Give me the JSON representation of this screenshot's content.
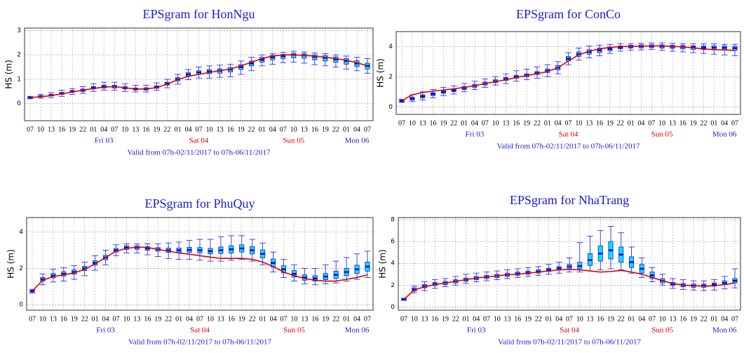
{
  "chart_data": [
    {
      "type": "boxplot",
      "title": "EPSgram for HonNgu",
      "ylabel": "HS (m)",
      "categories": [
        "07",
        "10",
        "13",
        "16",
        "19",
        "22",
        "01",
        "04",
        "07",
        "10",
        "13",
        "16",
        "19",
        "22",
        "01",
        "04",
        "07",
        "10",
        "13",
        "16",
        "19",
        "22",
        "01",
        "04",
        "07",
        "10",
        "13",
        "16",
        "19",
        "22",
        "01",
        "04",
        "07"
      ],
      "day_labels": [
        {
          "text": "Fri 03",
          "color": "#1a1adc"
        },
        {
          "text": "Sat 04",
          "color": "#e00000"
        },
        {
          "text": "Sun 05",
          "color": "#e00000"
        },
        {
          "text": "Mon 06",
          "color": "#1a1adc"
        }
      ],
      "footnote": "Valid from 07h-02/11/2017 to 07h-06/11/2017",
      "ylim": [
        -0.7,
        3.1
      ],
      "yticks": [
        0,
        1,
        2,
        3
      ],
      "grid": true,
      "box_color": "#00e5ff",
      "median_color": "#0000cc",
      "whisker_low": [
        0.2,
        0.22,
        0.25,
        0.3,
        0.38,
        0.42,
        0.5,
        0.55,
        0.55,
        0.5,
        0.48,
        0.48,
        0.55,
        0.65,
        0.8,
        0.98,
        1.05,
        1.05,
        1.08,
        1.1,
        1.2,
        1.35,
        1.55,
        1.62,
        1.68,
        1.7,
        1.66,
        1.6,
        1.55,
        1.5,
        1.42,
        1.35,
        1.25
      ],
      "q1": [
        0.23,
        0.27,
        0.32,
        0.38,
        0.46,
        0.5,
        0.6,
        0.64,
        0.64,
        0.6,
        0.56,
        0.56,
        0.63,
        0.76,
        0.93,
        1.12,
        1.2,
        1.23,
        1.25,
        1.3,
        1.4,
        1.55,
        1.7,
        1.8,
        1.85,
        1.88,
        1.86,
        1.8,
        1.75,
        1.7,
        1.62,
        1.52,
        1.42
      ],
      "median": [
        0.25,
        0.3,
        0.35,
        0.42,
        0.5,
        0.55,
        0.65,
        0.7,
        0.7,
        0.65,
        0.6,
        0.6,
        0.68,
        0.82,
        1.0,
        1.2,
        1.28,
        1.32,
        1.35,
        1.4,
        1.5,
        1.65,
        1.8,
        1.9,
        1.95,
        2.0,
        1.98,
        1.92,
        1.88,
        1.82,
        1.75,
        1.65,
        1.55
      ],
      "q3": [
        0.27,
        0.33,
        0.38,
        0.46,
        0.54,
        0.6,
        0.7,
        0.76,
        0.76,
        0.7,
        0.64,
        0.65,
        0.73,
        0.88,
        1.07,
        1.27,
        1.35,
        1.4,
        1.43,
        1.48,
        1.6,
        1.75,
        1.9,
        1.98,
        2.02,
        2.07,
        2.05,
        2.0,
        1.97,
        1.92,
        1.85,
        1.76,
        1.66
      ],
      "whisker_high": [
        0.3,
        0.38,
        0.45,
        0.55,
        0.62,
        0.7,
        0.82,
        0.88,
        0.88,
        0.82,
        0.75,
        0.76,
        0.85,
        1.0,
        1.2,
        1.4,
        1.5,
        1.55,
        1.58,
        1.62,
        1.75,
        1.9,
        2.0,
        2.05,
        2.1,
        2.15,
        2.12,
        2.08,
        2.05,
        2.0,
        1.95,
        1.9,
        1.85
      ],
      "line": {
        "color": "#e00000",
        "values": [
          0.25,
          0.28,
          0.33,
          0.4,
          0.48,
          0.55,
          0.62,
          0.68,
          0.7,
          0.65,
          0.6,
          0.6,
          0.66,
          0.8,
          0.98,
          1.12,
          1.2,
          1.28,
          1.35,
          1.42,
          1.55,
          1.7,
          1.85,
          1.95,
          2.0,
          2.0,
          1.98,
          1.95,
          1.9,
          1.85,
          1.78,
          1.68,
          1.55
        ]
      }
    },
    {
      "type": "boxplot",
      "title": "EPSgram for ConCo",
      "ylabel": "HS (m)",
      "categories": [
        "07",
        "10",
        "13",
        "16",
        "19",
        "22",
        "01",
        "04",
        "07",
        "10",
        "13",
        "16",
        "19",
        "22",
        "01",
        "04",
        "07",
        "10",
        "13",
        "16",
        "19",
        "22",
        "01",
        "04",
        "07",
        "10",
        "13",
        "16",
        "19",
        "22",
        "01",
        "04",
        "07"
      ],
      "day_labels": [
        {
          "text": "Fri 03",
          "color": "#1a1adc"
        },
        {
          "text": "Sat 04",
          "color": "#e00000"
        },
        {
          "text": "Sun 05",
          "color": "#e00000"
        },
        {
          "text": "Mon 06",
          "color": "#1a1adc"
        }
      ],
      "footnote": "Valid from 07h-02/11/2017 to 07h-06/11/2017",
      "ylim": [
        -0.5,
        5
      ],
      "yticks": [
        0,
        2,
        4
      ],
      "grid": true,
      "box_color": "#00e5ff",
      "median_color": "#0000cc",
      "whisker_low": [
        0.3,
        0.35,
        0.45,
        0.6,
        0.75,
        0.85,
        1.0,
        1.15,
        1.3,
        1.45,
        1.55,
        1.7,
        1.8,
        1.9,
        2.0,
        2.2,
        2.8,
        3.1,
        3.25,
        3.4,
        3.55,
        3.7,
        3.75,
        3.78,
        3.8,
        3.75,
        3.7,
        3.65,
        3.6,
        3.55,
        3.5,
        3.45,
        3.4
      ],
      "q1": [
        0.32,
        0.45,
        0.6,
        0.75,
        0.9,
        1.0,
        1.15,
        1.3,
        1.45,
        1.6,
        1.75,
        1.9,
        2.0,
        2.15,
        2.28,
        2.45,
        3.05,
        3.35,
        3.5,
        3.6,
        3.72,
        3.85,
        3.9,
        3.92,
        3.93,
        3.9,
        3.88,
        3.85,
        3.82,
        3.8,
        3.78,
        3.76,
        3.74
      ],
      "median": [
        0.4,
        0.55,
        0.7,
        0.85,
        1.0,
        1.1,
        1.25,
        1.4,
        1.55,
        1.7,
        1.85,
        2.0,
        2.1,
        2.25,
        2.4,
        2.6,
        3.2,
        3.5,
        3.65,
        3.75,
        3.85,
        3.95,
        4.0,
        4.02,
        4.03,
        4.02,
        4.0,
        3.98,
        3.96,
        3.94,
        3.93,
        3.92,
        3.9
      ],
      "q3": [
        0.48,
        0.65,
        0.8,
        0.95,
        1.1,
        1.2,
        1.35,
        1.5,
        1.65,
        1.8,
        1.95,
        2.1,
        2.2,
        2.35,
        2.52,
        2.75,
        3.35,
        3.65,
        3.8,
        3.9,
        3.98,
        4.05,
        4.1,
        4.12,
        4.13,
        4.12,
        4.1,
        4.08,
        4.06,
        4.05,
        4.05,
        4.04,
        4.02
      ],
      "whisker_high": [
        0.5,
        0.8,
        1.0,
        1.15,
        1.3,
        1.4,
        1.55,
        1.7,
        1.85,
        2.0,
        2.2,
        2.4,
        2.5,
        2.65,
        2.8,
        3.0,
        3.6,
        3.9,
        4.05,
        4.1,
        4.15,
        4.2,
        4.2,
        4.22,
        4.25,
        4.25,
        4.22,
        4.2,
        4.2,
        4.18,
        4.18,
        4.15,
        4.15
      ],
      "line": {
        "color": "#e00000",
        "values": [
          0.4,
          0.8,
          0.95,
          1.05,
          1.12,
          1.2,
          1.3,
          1.4,
          1.55,
          1.68,
          1.8,
          1.95,
          2.08,
          2.2,
          2.35,
          2.6,
          3.05,
          3.45,
          3.7,
          3.85,
          3.95,
          4.0,
          4.02,
          4.03,
          4.05,
          4.05,
          4.02,
          3.98,
          3.92,
          3.85,
          3.8,
          3.78,
          3.75
        ]
      }
    },
    {
      "type": "boxplot",
      "title": "EPSgram for PhuQuy",
      "ylabel": "HS (m)",
      "categories": [
        "07",
        "10",
        "13",
        "16",
        "19",
        "22",
        "01",
        "04",
        "07",
        "10",
        "13",
        "16",
        "19",
        "22",
        "01",
        "04",
        "07",
        "10",
        "13",
        "16",
        "19",
        "22",
        "01",
        "04",
        "07",
        "10",
        "13",
        "16",
        "19",
        "22",
        "01",
        "04",
        "07"
      ],
      "day_labels": [
        {
          "text": "Fri 03",
          "color": "#1a1adc"
        },
        {
          "text": "Sat 04",
          "color": "#e00000"
        },
        {
          "text": "Sun 05",
          "color": "#e00000"
        },
        {
          "text": "Mon 06",
          "color": "#1a1adc"
        }
      ],
      "footnote": "Valid from 07h-02/11/2017 to 07h-06/11/2017",
      "ylim": [
        -0.3,
        4.8
      ],
      "yticks": [
        0,
        2,
        4
      ],
      "grid": true,
      "box_color": "#00e5ff",
      "median_color": "#0000cc",
      "whisker_low": [
        0.65,
        1.1,
        1.25,
        1.3,
        1.4,
        1.6,
        1.9,
        2.2,
        2.7,
        2.85,
        2.85,
        2.75,
        2.65,
        2.55,
        2.5,
        2.5,
        2.45,
        2.4,
        2.4,
        2.45,
        2.5,
        2.4,
        2.2,
        1.8,
        1.5,
        1.3,
        1.15,
        1.1,
        1.15,
        1.2,
        1.3,
        1.4,
        1.5
      ],
      "q1": [
        0.7,
        1.3,
        1.48,
        1.58,
        1.68,
        1.88,
        2.18,
        2.48,
        2.9,
        3.05,
        3.05,
        3.0,
        2.95,
        2.88,
        2.88,
        2.88,
        2.85,
        2.8,
        2.82,
        2.85,
        2.9,
        2.8,
        2.58,
        2.08,
        1.75,
        1.52,
        1.35,
        1.3,
        1.38,
        1.45,
        1.6,
        1.72,
        1.85
      ],
      "median": [
        0.75,
        1.4,
        1.6,
        1.7,
        1.8,
        2.0,
        2.3,
        2.6,
        3.0,
        3.15,
        3.15,
        3.1,
        3.05,
        3.0,
        3.0,
        3.02,
        3.0,
        2.95,
        3.0,
        3.05,
        3.1,
        3.0,
        2.8,
        2.3,
        1.95,
        1.7,
        1.5,
        1.45,
        1.55,
        1.65,
        1.8,
        1.95,
        2.1
      ],
      "q3": [
        0.8,
        1.5,
        1.72,
        1.82,
        1.92,
        2.12,
        2.42,
        2.72,
        3.1,
        3.25,
        3.25,
        3.2,
        3.15,
        3.12,
        3.12,
        3.16,
        3.15,
        3.1,
        3.18,
        3.25,
        3.3,
        3.2,
        3.02,
        2.52,
        2.15,
        1.88,
        1.65,
        1.6,
        1.72,
        1.85,
        2.0,
        2.18,
        2.35
      ],
      "whisker_high": [
        0.85,
        1.7,
        1.95,
        2.05,
        2.15,
        2.35,
        2.7,
        3.0,
        3.3,
        3.35,
        3.35,
        3.35,
        3.35,
        3.4,
        3.45,
        3.55,
        3.6,
        3.6,
        3.75,
        3.8,
        3.8,
        3.6,
        3.4,
        2.9,
        2.5,
        2.2,
        2.0,
        2.0,
        2.2,
        2.4,
        2.6,
        2.8,
        2.95
      ],
      "line": {
        "color": "#e00000",
        "values": [
          0.75,
          1.35,
          1.55,
          1.65,
          1.75,
          1.95,
          2.25,
          2.6,
          2.95,
          3.1,
          3.18,
          3.15,
          3.05,
          2.95,
          2.85,
          2.78,
          2.7,
          2.62,
          2.55,
          2.55,
          2.55,
          2.5,
          2.35,
          2.1,
          1.8,
          1.6,
          1.45,
          1.35,
          1.3,
          1.3,
          1.4,
          1.5,
          1.65
        ]
      }
    },
    {
      "type": "boxplot",
      "title": "EPSgram for NhaTrang",
      "ylabel": "HS (m)",
      "categories": [
        "07",
        "10",
        "13",
        "16",
        "19",
        "22",
        "01",
        "04",
        "07",
        "10",
        "13",
        "16",
        "19",
        "22",
        "01",
        "04",
        "07",
        "10",
        "13",
        "16",
        "19",
        "22",
        "01",
        "04",
        "07",
        "10",
        "13",
        "16",
        "19",
        "22",
        "01",
        "04",
        "07"
      ],
      "day_labels": [
        {
          "text": "Fri 03",
          "color": "#1a1adc"
        },
        {
          "text": "Sat 04",
          "color": "#e00000"
        },
        {
          "text": "Sun 05",
          "color": "#e00000"
        },
        {
          "text": "Mon 06",
          "color": "#1a1adc"
        }
      ],
      "footnote": "Valid from 07h-02/11/2017 to 07h-06/11/2017",
      "ylim": [
        -0.3,
        8.2
      ],
      "yticks": [
        0,
        2,
        4,
        6,
        8
      ],
      "grid": true,
      "box_color": "#00e5ff",
      "median_color": "#0000cc",
      "whisker_low": [
        0.6,
        1.3,
        1.5,
        1.7,
        1.85,
        2.0,
        2.15,
        2.3,
        2.4,
        2.5,
        2.6,
        2.7,
        2.8,
        2.9,
        3.0,
        3.1,
        3.2,
        3.2,
        3.3,
        3.4,
        3.5,
        3.4,
        3.1,
        2.7,
        2.3,
        2.0,
        1.7,
        1.6,
        1.55,
        1.5,
        1.55,
        1.65,
        1.75
      ],
      "q1": [
        0.65,
        1.45,
        1.75,
        1.95,
        2.05,
        2.2,
        2.35,
        2.5,
        2.6,
        2.7,
        2.8,
        2.9,
        3.0,
        3.1,
        3.25,
        3.4,
        3.5,
        3.5,
        3.8,
        4.2,
        4.4,
        4.1,
        3.6,
        3.1,
        2.6,
        2.2,
        1.95,
        1.85,
        1.8,
        1.8,
        1.9,
        2.05,
        2.2
      ],
      "median": [
        0.7,
        1.6,
        1.9,
        2.1,
        2.2,
        2.35,
        2.5,
        2.65,
        2.75,
        2.85,
        2.95,
        3.05,
        3.15,
        3.25,
        3.4,
        3.55,
        3.7,
        3.75,
        4.3,
        4.9,
        5.2,
        4.8,
        4.1,
        3.5,
        2.9,
        2.4,
        2.1,
        2.0,
        1.95,
        1.95,
        2.05,
        2.2,
        2.4
      ],
      "q3": [
        0.75,
        1.75,
        2.05,
        2.25,
        2.35,
        2.5,
        2.65,
        2.8,
        2.9,
        3.0,
        3.1,
        3.2,
        3.3,
        3.4,
        3.55,
        3.7,
        3.9,
        4.1,
        4.9,
        5.6,
        6.0,
        5.5,
        4.6,
        3.9,
        3.2,
        2.6,
        2.25,
        2.15,
        2.1,
        2.1,
        2.2,
        2.4,
        2.6
      ],
      "whisker_high": [
        0.8,
        1.9,
        2.3,
        2.5,
        2.6,
        2.8,
        3.0,
        3.1,
        3.2,
        3.3,
        3.4,
        3.5,
        3.6,
        3.7,
        3.9,
        4.1,
        4.5,
        5.9,
        6.5,
        7.0,
        7.4,
        6.8,
        5.5,
        4.5,
        3.6,
        3.0,
        2.6,
        2.5,
        2.4,
        2.4,
        2.5,
        2.8,
        3.5
      ],
      "line": {
        "color": "#e00000",
        "values": [
          0.7,
          1.55,
          1.85,
          2.05,
          2.2,
          2.35,
          2.5,
          2.65,
          2.75,
          2.85,
          2.95,
          3.0,
          3.1,
          3.2,
          3.3,
          3.4,
          3.45,
          3.4,
          3.3,
          3.2,
          3.25,
          3.35,
          3.2,
          3.0,
          2.7,
          2.4,
          2.15,
          2.0,
          1.95,
          1.9,
          1.95,
          2.05,
          2.2
        ]
      }
    }
  ]
}
